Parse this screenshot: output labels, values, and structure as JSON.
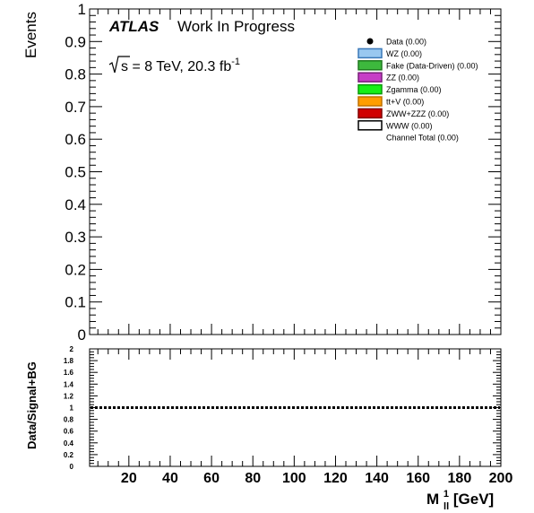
{
  "chart_data": [
    {
      "type": "bar",
      "panel": "main",
      "ylabel": "Events",
      "ylim": [
        0,
        1
      ],
      "yticks": [
        {
          "value": 0,
          "label": "0"
        },
        {
          "value": 0.1,
          "label": "0.1"
        },
        {
          "value": 0.2,
          "label": "0.2"
        },
        {
          "value": 0.3,
          "label": "0.3"
        },
        {
          "value": 0.4,
          "label": "0.4"
        },
        {
          "value": 0.5,
          "label": "0.5"
        },
        {
          "value": 0.6,
          "label": "0.6"
        },
        {
          "value": 0.7,
          "label": "0.7"
        },
        {
          "value": 0.8,
          "label": "0.8"
        },
        {
          "value": 0.9,
          "label": "0.9"
        },
        {
          "value": 1,
          "label": "1"
        }
      ],
      "xlim": [
        1,
        200
      ],
      "series": [],
      "annotations": {
        "experiment": "ATLAS",
        "status": "Work In Progress",
        "energy_sqrt": "s",
        "energy_text": " = 8 TeV, 20.3 fb",
        "energy_sup": "-1"
      },
      "legend": {
        "placement": "top-right",
        "entries": [
          {
            "label": "Data (0.00)",
            "style": "marker",
            "color": "#000000"
          },
          {
            "label": "WZ (0.00)",
            "style": "box",
            "color": "#99c8f0",
            "border": "#3a78b8"
          },
          {
            "label": "Fake (Data-Driven)  (0.00)",
            "style": "box",
            "color": "#3db83d",
            "border": "#1e7a1e"
          },
          {
            "label": "ZZ (0.00)",
            "style": "box",
            "color": "#c63ec6",
            "border": "#7a1f7a"
          },
          {
            "label": "Zgamma (0.00)",
            "style": "box",
            "color": "#16f016",
            "border": "#0a9a0a"
          },
          {
            "label": "tt+V (0.00)",
            "style": "box",
            "color": "#ff9e00",
            "border": "#c07000"
          },
          {
            "label": "ZWW+ZZZ (0.00)",
            "style": "box",
            "color": "#d00000",
            "border": "#800000"
          },
          {
            "label": "WWW (0.00)",
            "style": "box",
            "color": "#ffffff",
            "border": "#000000"
          },
          {
            "label": "Channel Total  (0.00)",
            "style": "none",
            "color": ""
          }
        ]
      }
    },
    {
      "type": "line",
      "panel": "ratio",
      "ylabel": "Data/Signal+BG",
      "xlabel": "M",
      "xlabel_sup": "1",
      "xlabel_sub": "ll",
      "xlabel_unit": " [GeV]",
      "ylim": [
        0,
        2
      ],
      "yticks": [
        {
          "value": 0,
          "label": "0"
        },
        {
          "value": 0.2,
          "label": "0.2"
        },
        {
          "value": 0.4,
          "label": "0.4"
        },
        {
          "value": 0.6,
          "label": "0.6"
        },
        {
          "value": 0.8,
          "label": "0.8"
        },
        {
          "value": 1,
          "label": "1"
        },
        {
          "value": 1.2,
          "label": "1.2"
        },
        {
          "value": 1.4,
          "label": "1.4"
        },
        {
          "value": 1.6,
          "label": "1.6"
        },
        {
          "value": 1.8,
          "label": "1.8"
        },
        {
          "value": 2,
          "label": "2"
        }
      ],
      "xlim": [
        1,
        200
      ],
      "xticks": [
        {
          "value": 20,
          "label": "20"
        },
        {
          "value": 40,
          "label": "40"
        },
        {
          "value": 60,
          "label": "60"
        },
        {
          "value": 80,
          "label": "80"
        },
        {
          "value": 100,
          "label": "100"
        },
        {
          "value": 120,
          "label": "120"
        },
        {
          "value": 140,
          "label": "140"
        },
        {
          "value": 160,
          "label": "160"
        },
        {
          "value": 180,
          "label": "180"
        },
        {
          "value": 200,
          "label": "200"
        }
      ],
      "reference_line": {
        "y": 1,
        "style": "dotted"
      }
    }
  ]
}
